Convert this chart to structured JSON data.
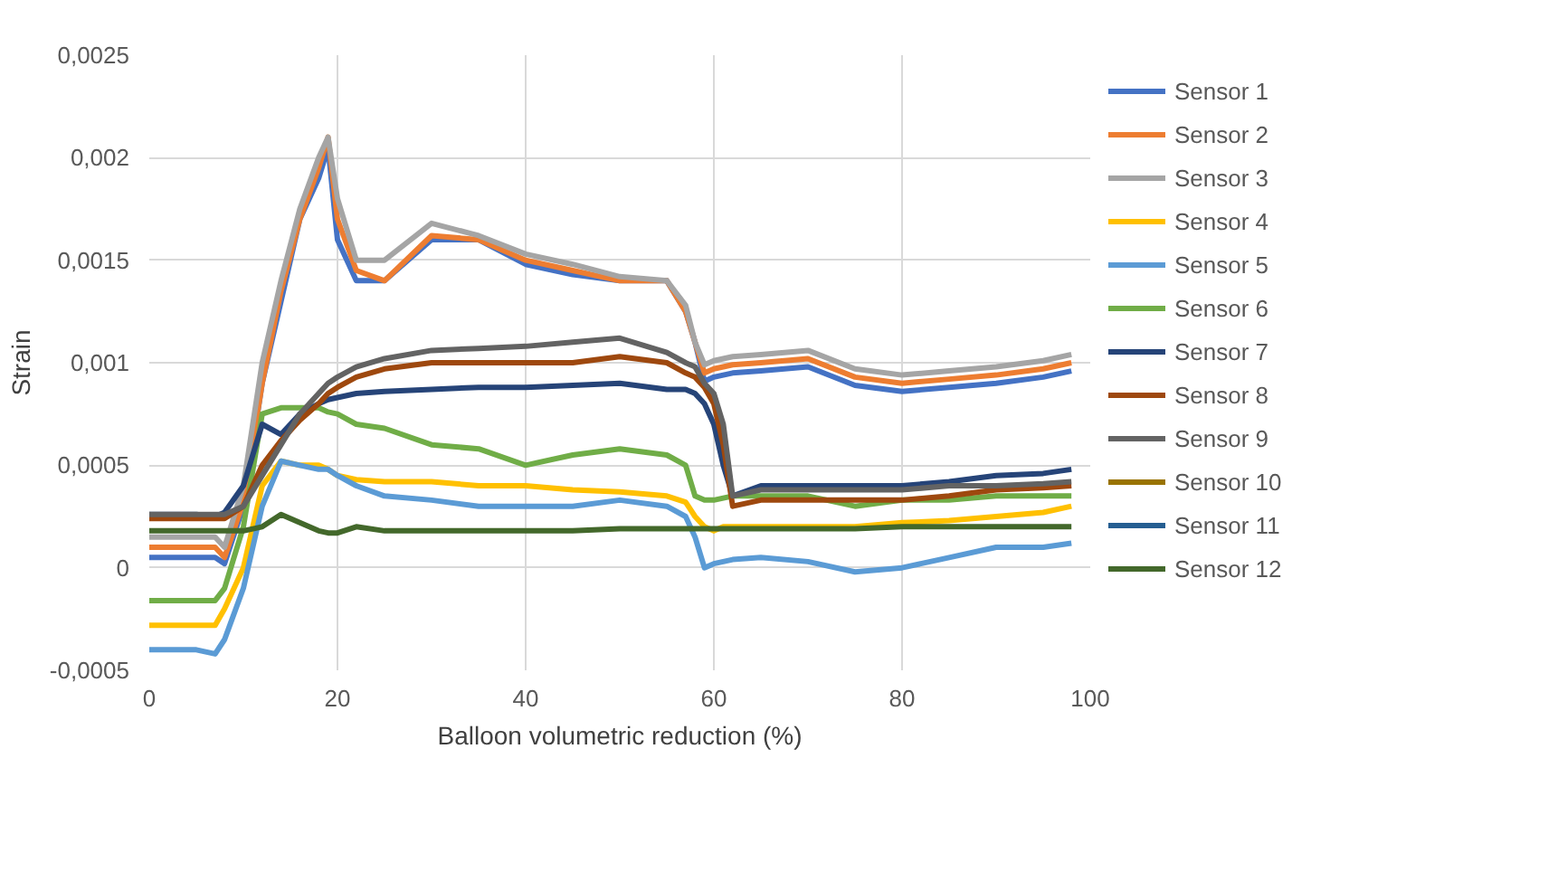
{
  "chart_data": {
    "type": "line",
    "xlabel": "Balloon volumetric reduction (%)",
    "ylabel": "Strain",
    "xlim": [
      0,
      100
    ],
    "xticks": [
      0,
      20,
      40,
      60,
      80,
      100
    ],
    "ylim": [
      -0.0005,
      0.0025
    ],
    "yticks": [
      {
        "value": -0.0005,
        "label": "-0,0005"
      },
      {
        "value": 0,
        "label": "0"
      },
      {
        "value": 0.0005,
        "label": "0,0005"
      },
      {
        "value": 0.001,
        "label": "0,001"
      },
      {
        "value": 0.0015,
        "label": "0,0015"
      },
      {
        "value": 0.002,
        "label": "0,002"
      },
      {
        "value": 0.0025,
        "label": "0,0025"
      }
    ],
    "grid": true,
    "legend": "right",
    "line_style": "solid",
    "marker": "none",
    "x": [
      0,
      5,
      7,
      8,
      10,
      12,
      14,
      16,
      18,
      19,
      20,
      22,
      25,
      30,
      35,
      40,
      45,
      50,
      55,
      57,
      58,
      59,
      60,
      61,
      62,
      65,
      70,
      75,
      80,
      85,
      90,
      95,
      98
    ],
    "series": [
      {
        "name": "Sensor 1",
        "color": "#4472c4",
        "values": [
          5e-05,
          5e-05,
          5e-05,
          2e-05,
          0.0003,
          0.0009,
          0.0013,
          0.0017,
          0.0019,
          0.00205,
          0.0016,
          0.0014,
          0.0014,
          0.0016,
          0.0016,
          0.00148,
          0.00143,
          0.0014,
          0.0014,
          0.00125,
          0.0011,
          0.00091,
          0.00093,
          0.00094,
          0.00095,
          0.00096,
          0.00098,
          0.00089,
          0.00086,
          0.00088,
          0.0009,
          0.00093,
          0.00096
        ]
      },
      {
        "name": "Sensor 2",
        "color": "#ed7d31",
        "values": [
          0.0001,
          0.0001,
          0.0001,
          5e-05,
          0.00032,
          0.0009,
          0.00135,
          0.0017,
          0.00195,
          0.0021,
          0.0017,
          0.00145,
          0.0014,
          0.00162,
          0.0016,
          0.0015,
          0.00145,
          0.0014,
          0.0014,
          0.00125,
          0.0011,
          0.00095,
          0.00097,
          0.00098,
          0.00099,
          0.001,
          0.00102,
          0.00093,
          0.0009,
          0.00092,
          0.00094,
          0.00097,
          0.001
        ]
      },
      {
        "name": "Sensor 3",
        "color": "#a5a5a5",
        "values": [
          0.00015,
          0.00015,
          0.00015,
          0.0001,
          0.0004,
          0.001,
          0.0014,
          0.00175,
          0.002,
          0.0021,
          0.0018,
          0.0015,
          0.0015,
          0.00168,
          0.00162,
          0.00153,
          0.00148,
          0.00142,
          0.0014,
          0.00128,
          0.0011,
          0.00099,
          0.00101,
          0.00102,
          0.00103,
          0.00104,
          0.00106,
          0.00097,
          0.00094,
          0.00096,
          0.00098,
          0.00101,
          0.00104
        ]
      },
      {
        "name": "Sensor 4",
        "color": "#ffc000",
        "values": [
          -0.00028,
          -0.00028,
          -0.00028,
          -0.0002,
          0.0,
          0.0004,
          0.00052,
          0.0005,
          0.0005,
          0.00048,
          0.00045,
          0.00043,
          0.00042,
          0.00042,
          0.0004,
          0.0004,
          0.00038,
          0.00037,
          0.00035,
          0.00032,
          0.00025,
          0.0002,
          0.00018,
          0.0002,
          0.0002,
          0.0002,
          0.0002,
          0.0002,
          0.00022,
          0.00023,
          0.00025,
          0.00027,
          0.0003
        ]
      },
      {
        "name": "Sensor 5",
        "color": "#5b9bd5",
        "values": [
          -0.0004,
          -0.0004,
          -0.00042,
          -0.00035,
          -0.0001,
          0.0003,
          0.00052,
          0.0005,
          0.00048,
          0.00048,
          0.00045,
          0.0004,
          0.00035,
          0.00033,
          0.0003,
          0.0003,
          0.0003,
          0.00033,
          0.0003,
          0.00025,
          0.00015,
          0.0,
          2e-05,
          3e-05,
          4e-05,
          5e-05,
          3e-05,
          -2e-05,
          0.0,
          5e-05,
          0.0001,
          0.0001,
          0.00012
        ]
      },
      {
        "name": "Sensor 6",
        "color": "#70ad47",
        "values": [
          -0.00016,
          -0.00016,
          -0.00016,
          -0.0001,
          0.0002,
          0.00075,
          0.00078,
          0.00078,
          0.00078,
          0.00076,
          0.00075,
          0.0007,
          0.00068,
          0.0006,
          0.00058,
          0.0005,
          0.00055,
          0.00058,
          0.00055,
          0.0005,
          0.00035,
          0.00033,
          0.00033,
          0.00034,
          0.00035,
          0.00035,
          0.00035,
          0.0003,
          0.00033,
          0.00033,
          0.00035,
          0.00035,
          0.00035
        ]
      },
      {
        "name": "Sensor 7",
        "color": "#264478",
        "values": [
          0.00026,
          0.00026,
          0.00025,
          0.00027,
          0.0004,
          0.0007,
          0.00065,
          0.00075,
          0.0008,
          0.00082,
          0.00083,
          0.00085,
          0.00086,
          0.00087,
          0.00088,
          0.00088,
          0.00089,
          0.0009,
          0.00087,
          0.00087,
          0.00085,
          0.0008,
          0.0007,
          0.0005,
          0.00035,
          0.0004,
          0.0004,
          0.0004,
          0.0004,
          0.00042,
          0.00045,
          0.00046,
          0.00048
        ]
      },
      {
        "name": "Sensor 8",
        "color": "#9e480e",
        "values": [
          0.00024,
          0.00024,
          0.00024,
          0.00024,
          0.0003,
          0.0005,
          0.00062,
          0.00072,
          0.0008,
          0.00085,
          0.00088,
          0.00093,
          0.00097,
          0.001,
          0.001,
          0.001,
          0.001,
          0.00103,
          0.001,
          0.00095,
          0.00093,
          0.00088,
          0.0008,
          0.0006,
          0.0003,
          0.00033,
          0.00033,
          0.00033,
          0.00033,
          0.00035,
          0.00038,
          0.00039,
          0.0004
        ]
      },
      {
        "name": "Sensor 9",
        "color": "#636363",
        "values": [
          0.00026,
          0.00026,
          0.00026,
          0.00026,
          0.0003,
          0.00045,
          0.0006,
          0.00075,
          0.00085,
          0.0009,
          0.00093,
          0.00098,
          0.00102,
          0.00106,
          0.00107,
          0.00108,
          0.0011,
          0.00112,
          0.00105,
          0.001,
          0.00098,
          0.0009,
          0.00085,
          0.0007,
          0.00035,
          0.00038,
          0.00038,
          0.00038,
          0.00038,
          0.0004,
          0.0004,
          0.00041,
          0.00042
        ]
      },
      {
        "name": "Sensor 10",
        "color": "#997300",
        "values": [
          null,
          null,
          null,
          null,
          null,
          null,
          null,
          null,
          null,
          null,
          null,
          null,
          null,
          null,
          null,
          null,
          null,
          null,
          null,
          null,
          null,
          null,
          null,
          null,
          null,
          null,
          null,
          null,
          null,
          null,
          null,
          null,
          null
        ]
      },
      {
        "name": "Sensor 11",
        "color": "#255e91",
        "values": [
          null,
          null,
          null,
          null,
          null,
          null,
          null,
          null,
          null,
          null,
          null,
          null,
          null,
          null,
          null,
          null,
          null,
          null,
          null,
          null,
          null,
          null,
          null,
          null,
          null,
          null,
          null,
          null,
          null,
          null,
          null,
          null,
          null
        ]
      },
      {
        "name": "Sensor 12",
        "color": "#43682b",
        "values": [
          0.00018,
          0.00018,
          0.00018,
          0.00018,
          0.00018,
          0.0002,
          0.00026,
          0.00022,
          0.00018,
          0.00017,
          0.00017,
          0.0002,
          0.00018,
          0.00018,
          0.00018,
          0.00018,
          0.00018,
          0.00019,
          0.00019,
          0.00019,
          0.00019,
          0.00019,
          0.00019,
          0.00019,
          0.00019,
          0.00019,
          0.00019,
          0.00019,
          0.0002,
          0.0002,
          0.0002,
          0.0002,
          0.0002
        ]
      }
    ]
  }
}
